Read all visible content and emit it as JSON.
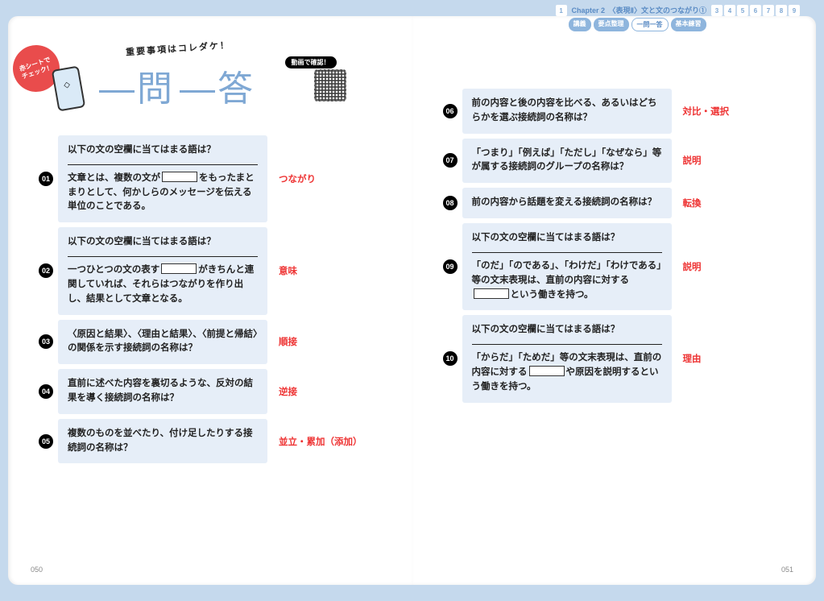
{
  "nav": {
    "pre_num": "1",
    "chapter_title": "Chapter 2　〈表現Ⅱ〉文と文のつながり①",
    "tabs": [
      "講義",
      "要点整理",
      "一問一答",
      "基本練習"
    ],
    "active_tab_index": 2,
    "post_nums": [
      "3",
      "4",
      "5",
      "6",
      "7",
      "8",
      "9"
    ]
  },
  "header": {
    "red_badge_line1": "赤シートで",
    "red_badge_line2": "チェック！",
    "curve_text": "重要事項はコレダケ！",
    "video_badge": "動画で確認！"
  },
  "left_page_num": "050",
  "right_page_num": "051",
  "qa_left": [
    {
      "num": "01",
      "q_pre": "以下の文の空欄に当てはまる語は？",
      "q_main_html": "文章とは、複数の文が<span class='blank'></span>をもったまとまりとして、何かしらのメッセージを伝える単位のことである。",
      "a": "つながり"
    },
    {
      "num": "02",
      "q_pre": "以下の文の空欄に当てはまる語は？",
      "q_main_html": "一つひとつの文の表す<span class='blank'></span>がきちんと連関していれば、それらはつながりを作り出し、結果として文章となる。",
      "a": "意味"
    },
    {
      "num": "03",
      "q_main_html": "〈原因と結果〉、〈理由と結果〉、〈前提と帰結〉の関係を示す接続詞の名称は？",
      "a": "順接"
    },
    {
      "num": "04",
      "q_main_html": "直前に述べた内容を裏切るような、反対の結果を導く接続詞の名称は？",
      "a": "逆接"
    },
    {
      "num": "05",
      "q_main_html": "複数のものを並べたり、付け足したりする接続詞の名称は？",
      "a": "並立・累加（添加）"
    }
  ],
  "qa_right": [
    {
      "num": "06",
      "q_main_html": "前の内容と後の内容を比べる、あるいはどちらかを選ぶ接続詞の名称は？",
      "a": "対比・選択"
    },
    {
      "num": "07",
      "q_main_html": "「つまり」「例えば」「ただし」「なぜなら」等が属する接続詞のグループの名称は？",
      "a": "説明"
    },
    {
      "num": "08",
      "q_main_html": "前の内容から話題を変える接続詞の名称は？",
      "a": "転換"
    },
    {
      "num": "09",
      "q_pre": "以下の文の空欄に当てはまる語は？",
      "q_main_html": "「のだ」「のである」、「わけだ」「わけである」等の文末表現は、直前の内容に対する<span class='blank'></span>という働きを持つ。",
      "a": "説明"
    },
    {
      "num": "10",
      "q_pre": "以下の文の空欄に当てはまる語は？",
      "q_main_html": "「からだ」「ためだ」等の文末表現は、直前の内容に対する<span class='blank'></span>や原因を説明するという働きを持つ。",
      "a": "理由"
    }
  ]
}
